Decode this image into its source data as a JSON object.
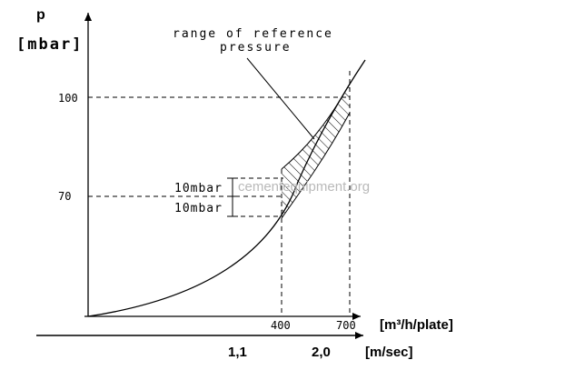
{
  "y_axis": {
    "symbol": "p",
    "unit": "[mbar]",
    "ticks": [
      "100",
      "70"
    ]
  },
  "x_axis": {
    "ticks": [
      "400",
      "700"
    ],
    "unit": "[m³/h/plate]"
  },
  "velocity_axis": {
    "ticks": [
      "1,1",
      "2,0"
    ],
    "unit": "[m/sec]"
  },
  "annotations": {
    "range_line1": "range of reference",
    "range_line2": "pressure",
    "band_upper": "10mbar",
    "band_lower": "10mbar"
  },
  "watermark": "cementequipment.org"
}
